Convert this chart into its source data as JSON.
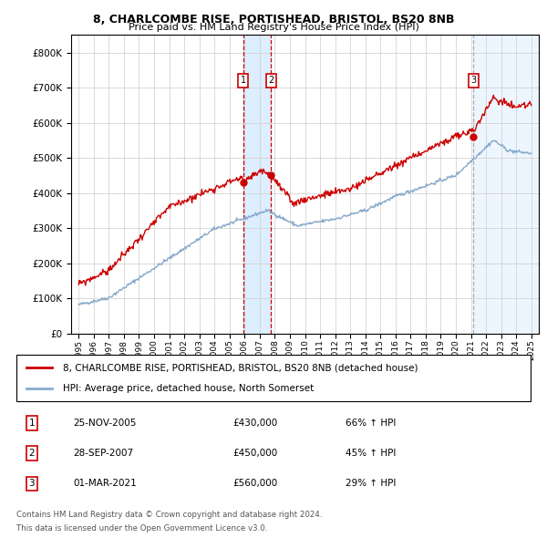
{
  "title1": "8, CHARLCOMBE RISE, PORTISHEAD, BRISTOL, BS20 8NB",
  "title2": "Price paid vs. HM Land Registry's House Price Index (HPI)",
  "legend_line1": "8, CHARLCOMBE RISE, PORTISHEAD, BRISTOL, BS20 8NB (detached house)",
  "legend_line2": "HPI: Average price, detached house, North Somerset",
  "sale_color": "#cc0000",
  "hpi_color": "#88aacc",
  "vline_color_red": "#cc0000",
  "vline_color_gray": "#aaaaaa",
  "vband_color": "#ddeeff",
  "transactions": [
    {
      "label": "1",
      "date_x": 2005.9,
      "price": 430000,
      "pct": "66%",
      "date_str": "25-NOV-2005"
    },
    {
      "label": "2",
      "date_x": 2007.75,
      "price": 450000,
      "pct": "45%",
      "date_str": "28-SEP-2007"
    },
    {
      "label": "3",
      "date_x": 2021.17,
      "price": 560000,
      "pct": "29%",
      "date_str": "01-MAR-2021"
    }
  ],
  "ylim": [
    0,
    850000
  ],
  "yticks": [
    0,
    100000,
    200000,
    300000,
    400000,
    500000,
    600000,
    700000,
    800000
  ],
  "xlim": [
    1994.5,
    2025.5
  ],
  "footer1": "Contains HM Land Registry data © Crown copyright and database right 2024.",
  "footer2": "This data is licensed under the Open Government Licence v3.0."
}
